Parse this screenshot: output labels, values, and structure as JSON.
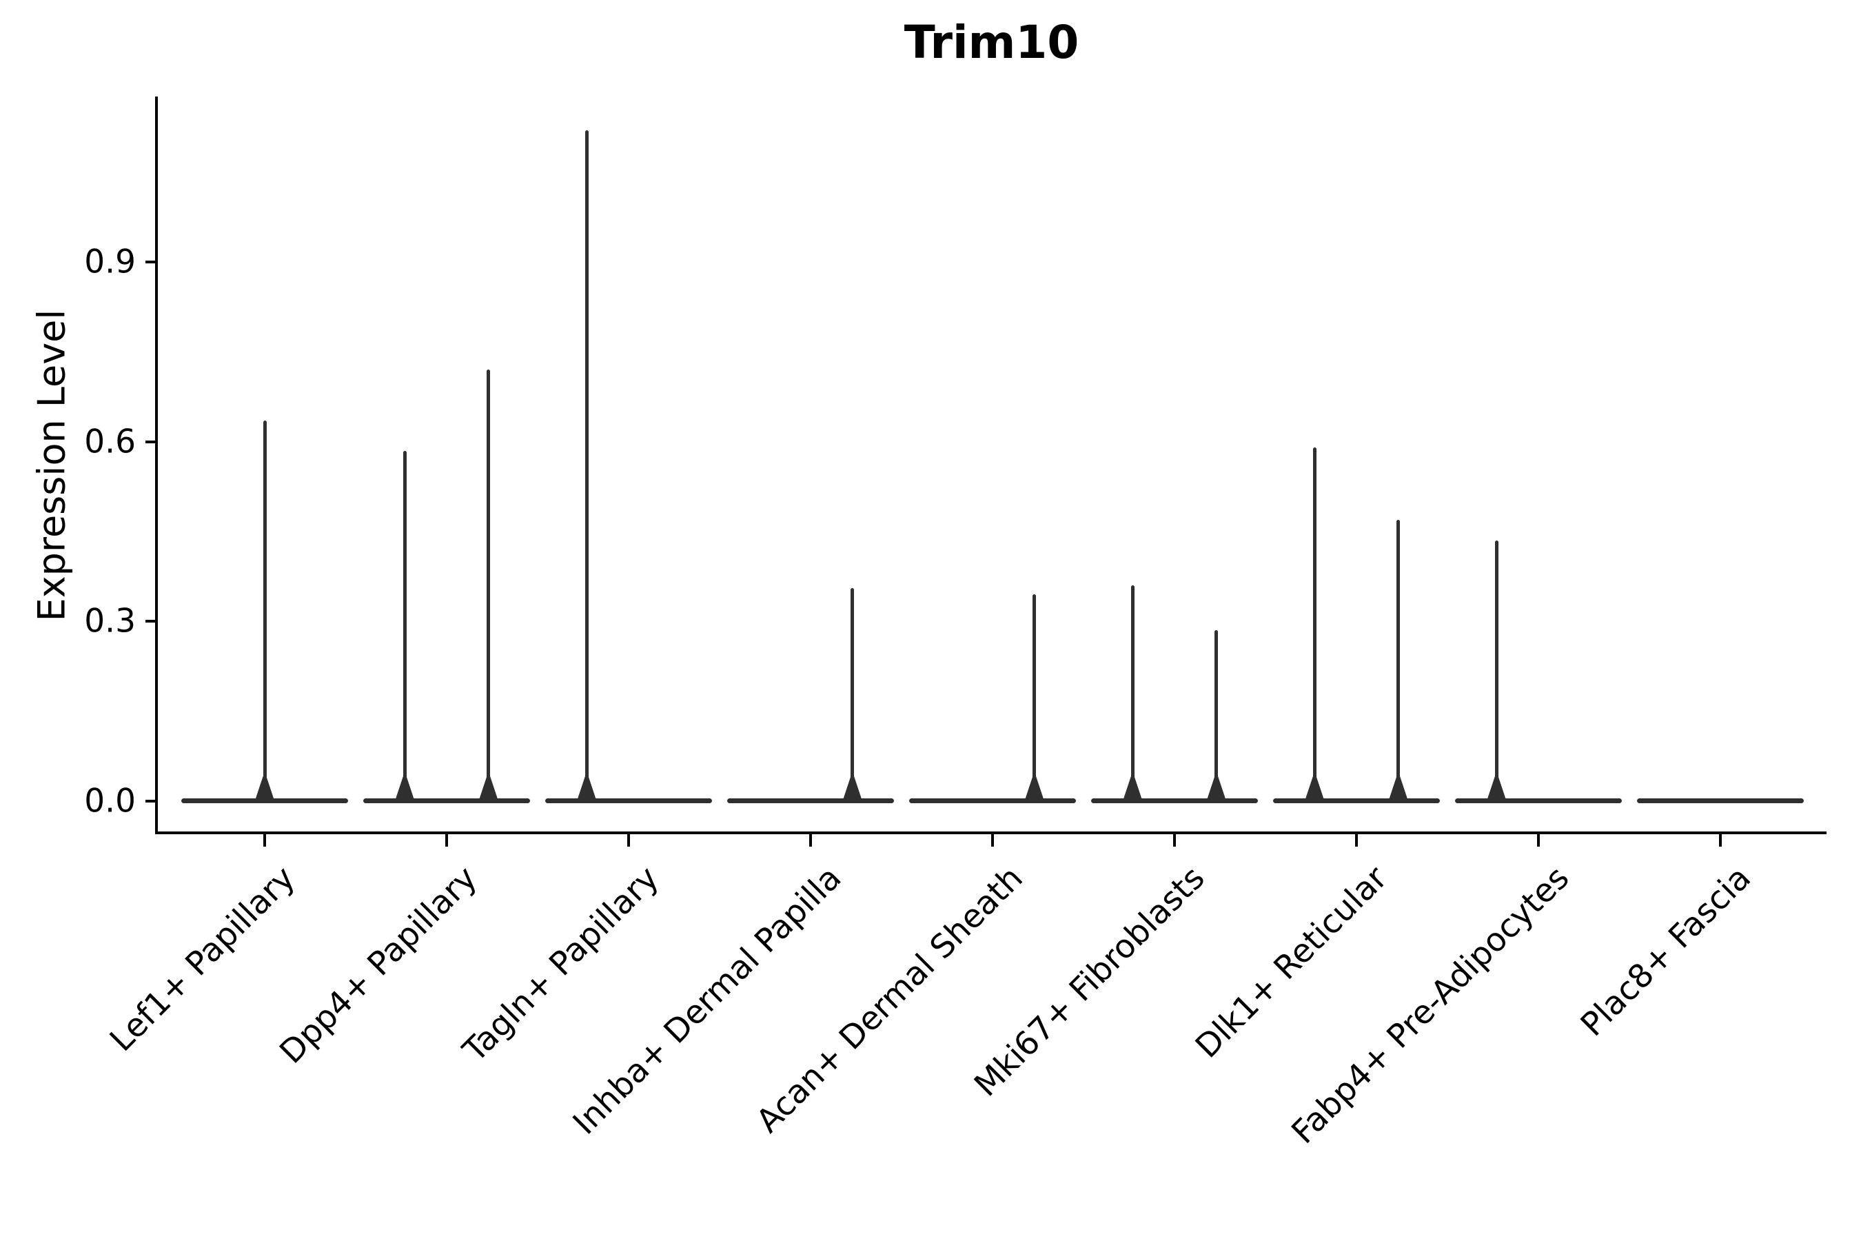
{
  "chart_data": {
    "type": "violin",
    "title": "Trim10",
    "ylabel": "Expression Level",
    "xlabel": "",
    "yticks": [
      "0.0",
      "0.3",
      "0.6",
      "0.9"
    ],
    "ytick_values": [
      0.0,
      0.3,
      0.6,
      0.9
    ],
    "ylim": [
      -0.053,
      1.176
    ],
    "grid": false,
    "legend": "none",
    "background": "#ffffff",
    "colors": {
      "violin": "#2f2f2f",
      "axis": "#000000",
      "text": "#000000"
    },
    "categories": [
      "Lef1+ Papillary",
      "Dpp4+ Papillary",
      "Tagln+ Papillary",
      "Inhba+ Dermal Papilla",
      "Acan+ Dermal Sheath",
      "Mki67+ Fibroblasts",
      "Dlk1+ Reticular",
      "Fabp4+ Pre-Adipocytes",
      "Plac8+ Fascia"
    ],
    "violins": [
      {
        "category": "Lef1+ Papillary",
        "baseline": 0.0,
        "spikes": [
          {
            "offset": 0.0,
            "max": 0.635
          }
        ]
      },
      {
        "category": "Dpp4+ Papillary",
        "baseline": 0.0,
        "spikes": [
          {
            "offset": -0.23,
            "max": 0.585
          },
          {
            "offset": 0.23,
            "max": 0.72
          }
        ]
      },
      {
        "category": "Tagln+ Papillary",
        "baseline": 0.0,
        "spikes": [
          {
            "offset": -0.23,
            "max": 1.12
          }
        ]
      },
      {
        "category": "Inhba+ Dermal Papilla",
        "baseline": 0.0,
        "spikes": [
          {
            "offset": 0.23,
            "max": 0.355
          }
        ]
      },
      {
        "category": "Acan+ Dermal Sheath",
        "baseline": 0.0,
        "spikes": [
          {
            "offset": 0.23,
            "max": 0.345
          }
        ]
      },
      {
        "category": "Mki67+ Fibroblasts",
        "baseline": 0.0,
        "spikes": [
          {
            "offset": -0.23,
            "max": 0.36
          },
          {
            "offset": 0.23,
            "max": 0.285
          }
        ]
      },
      {
        "category": "Dlk1+ Reticular",
        "baseline": 0.0,
        "spikes": [
          {
            "offset": -0.23,
            "max": 0.59
          },
          {
            "offset": 0.23,
            "max": 0.47
          }
        ]
      },
      {
        "category": "Fabp4+ Pre-Adipocytes",
        "baseline": 0.0,
        "spikes": [
          {
            "offset": -0.23,
            "max": 0.435
          }
        ]
      },
      {
        "category": "Plac8+ Fascia",
        "baseline": 0.0,
        "spikes": []
      }
    ]
  }
}
